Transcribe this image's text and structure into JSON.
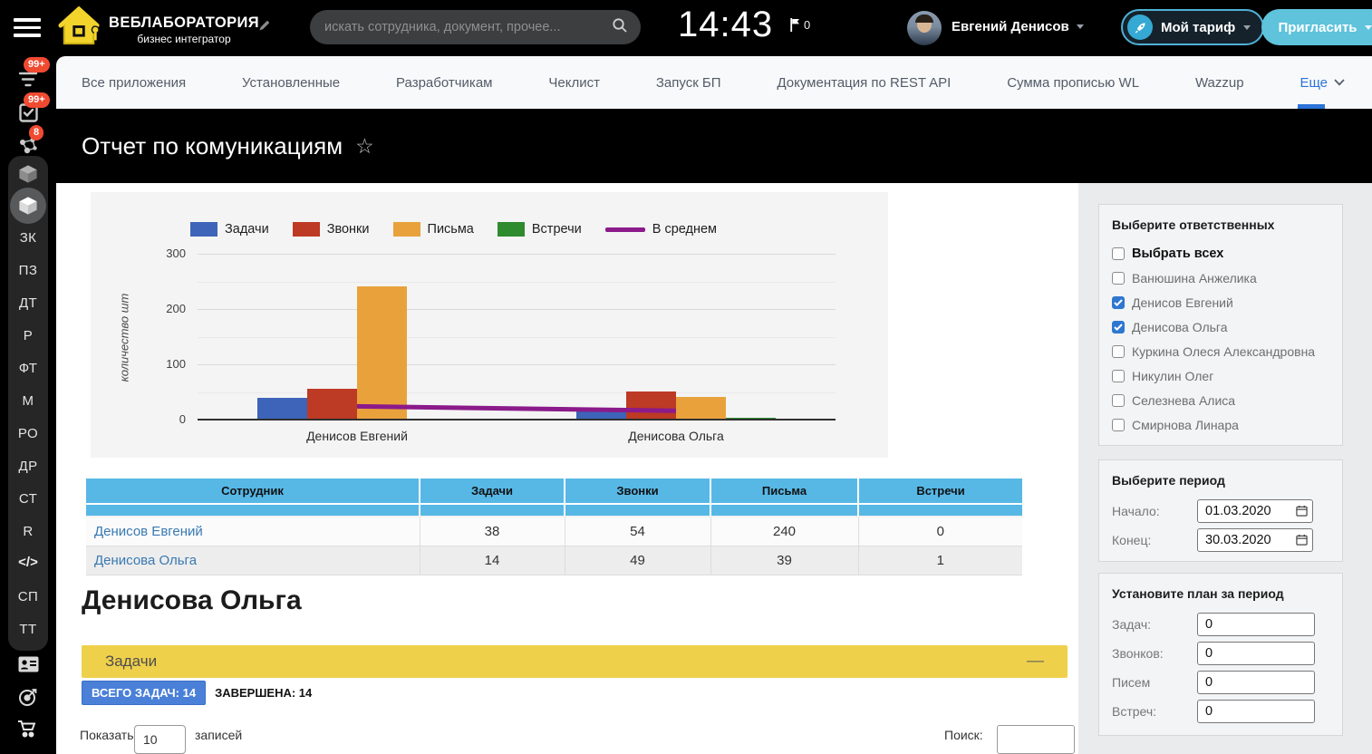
{
  "topbar": {
    "logo_title": "ВЕБЛАБОРАТОРИЯ",
    "logo_subtitle": "бизнес интегратор",
    "search_placeholder": "искать сотрудника, документ, прочее...",
    "time": "14:43",
    "flag_count": "0",
    "user_name": "Евгений Денисов",
    "tariff_button": "Мой тариф",
    "invite_button": "Пригласить"
  },
  "sidebar": {
    "badge_feed": "99+",
    "badge_tasks": "99+",
    "badge_crm": "8",
    "rail_letters_top": [
      "ЗК",
      "ПЗ",
      "ДТ",
      "Р",
      "ФТ",
      "М",
      "РО",
      "ДР",
      "СТ",
      "R"
    ],
    "rail_code_label": "</>",
    "rail_letters_bottom": [
      "СП",
      "ТТ"
    ]
  },
  "nav": {
    "items": [
      "Все приложения",
      "Установленные",
      "Разработчикам",
      "Чеклист",
      "Запуск БП",
      "Документация по REST API",
      "Сумма прописью WL",
      "Wazzup"
    ],
    "more_label": "Еще"
  },
  "page": {
    "title": "Отчет по комуникациям"
  },
  "chart_data": {
    "type": "bar",
    "title": "",
    "categories": [
      "Денисов Евгений",
      "Денисова Ольга"
    ],
    "series": [
      {
        "name": "Задачи",
        "color": "#3d64b8",
        "values": [
          38,
          14
        ]
      },
      {
        "name": "Звонки",
        "color": "#bd3a24",
        "values": [
          54,
          49
        ]
      },
      {
        "name": "Письма",
        "color": "#e9a23b",
        "values": [
          240,
          39
        ]
      },
      {
        "name": "Встречи",
        "color": "#2e8b2e",
        "values": [
          0,
          1
        ]
      }
    ],
    "line_series": {
      "name": "В среднем",
      "color": "#8b1a8b",
      "values": [
        24,
        16
      ]
    },
    "xlabel": "",
    "ylabel": "количество шт",
    "ylim": [
      0,
      300
    ],
    "yticks": [
      0,
      100,
      200,
      300
    ],
    "grid": true,
    "legend_position": "top"
  },
  "table": {
    "headers": [
      "Сотрудник",
      "Задачи",
      "Звонки",
      "Письма",
      "Встречи"
    ],
    "rows": [
      {
        "name": "Денисов Евгений",
        "values": [
          "38",
          "54",
          "240",
          "0"
        ]
      },
      {
        "name": "Денисова Ольга",
        "values": [
          "14",
          "49",
          "39",
          "1"
        ]
      }
    ]
  },
  "detail": {
    "heading": "Денисова Ольга",
    "accordion_title": "Задачи",
    "collapse_glyph": "—",
    "badge_total": "ВСЕГО ЗАДАЧ: 14",
    "badge_done": "ЗАВЕРШЕНА: 14"
  },
  "pagination": {
    "show_label": "Показать",
    "page_size": "10",
    "entries_label": "записей",
    "search_label": "Поиск:"
  },
  "panel": {
    "responsibles_title": "Выберите ответственных",
    "select_all": {
      "label": "Выбрать всех",
      "checked": false
    },
    "people": [
      {
        "name": "Ванюшина Анжелика",
        "checked": false
      },
      {
        "name": "Денисов Евгений",
        "checked": true
      },
      {
        "name": "Денисова Ольга",
        "checked": true
      },
      {
        "name": "Куркина Олеся Александровна",
        "checked": false
      },
      {
        "name": "Никулин Олег",
        "checked": false
      },
      {
        "name": "Селезнева Алиса",
        "checked": false
      },
      {
        "name": "Смирнова Линара",
        "checked": false
      }
    ],
    "period_title": "Выберите период",
    "period_fields": [
      {
        "label": "Начало:",
        "value": "01.03.2020"
      },
      {
        "label": "Конец:",
        "value": "30.03.2020"
      }
    ],
    "plan_title": "Установите план за период",
    "plan_fields": [
      {
        "label": "Задач:",
        "value": "0"
      },
      {
        "label": "Звонков:",
        "value": "0"
      },
      {
        "label": "Писем",
        "value": "0"
      },
      {
        "label": "Встреч:",
        "value": "0"
      }
    ]
  },
  "colors": {
    "accent_blue": "#2b74d9",
    "table_header": "#57b8e6",
    "accordion_yellow": "#efd04b",
    "badge_blue": "#4a80d8",
    "notification_red": "#f04a31",
    "invite_button": "#5fc3dc",
    "tariff_icon_circle": "#35a9d4",
    "link_blue": "#3879b2",
    "checkbox_checked": "#2e77d0"
  }
}
